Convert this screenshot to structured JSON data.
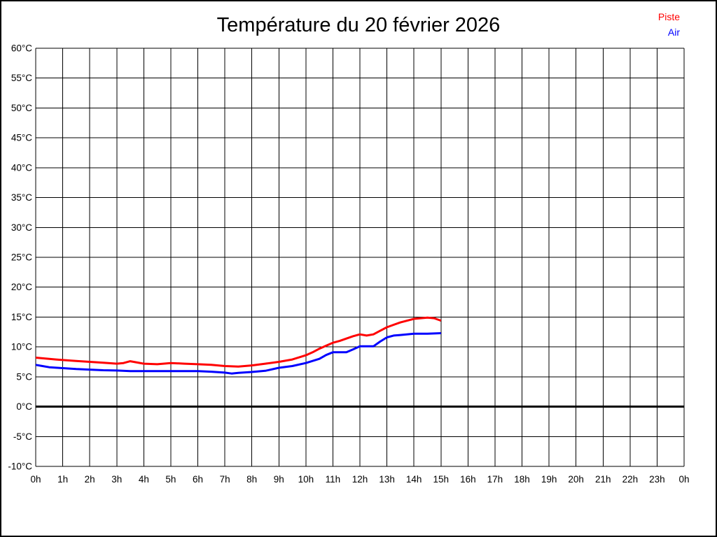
{
  "chart_data": {
    "type": "line",
    "title": "Température du 20 février 2026",
    "xlabel": "",
    "ylabel": "",
    "x_range": [
      0,
      24
    ],
    "y_range": [
      -10,
      60
    ],
    "grid": true,
    "zero_line_value": 0,
    "x_ticks": [
      {
        "v": 0,
        "label": "0h"
      },
      {
        "v": 1,
        "label": "1h"
      },
      {
        "v": 2,
        "label": "2h"
      },
      {
        "v": 3,
        "label": "3h"
      },
      {
        "v": 4,
        "label": "4h"
      },
      {
        "v": 5,
        "label": "5h"
      },
      {
        "v": 6,
        "label": "6h"
      },
      {
        "v": 7,
        "label": "7h"
      },
      {
        "v": 8,
        "label": "8h"
      },
      {
        "v": 9,
        "label": "9h"
      },
      {
        "v": 10,
        "label": "10h"
      },
      {
        "v": 11,
        "label": "11h"
      },
      {
        "v": 12,
        "label": "12h"
      },
      {
        "v": 13,
        "label": "13h"
      },
      {
        "v": 14,
        "label": "14h"
      },
      {
        "v": 15,
        "label": "15h"
      },
      {
        "v": 16,
        "label": "16h"
      },
      {
        "v": 17,
        "label": "17h"
      },
      {
        "v": 18,
        "label": "18h"
      },
      {
        "v": 19,
        "label": "19h"
      },
      {
        "v": 20,
        "label": "20h"
      },
      {
        "v": 21,
        "label": "21h"
      },
      {
        "v": 22,
        "label": "22h"
      },
      {
        "v": 23,
        "label": "23h"
      },
      {
        "v": 24,
        "label": "0h"
      }
    ],
    "y_ticks": [
      {
        "v": -10,
        "label": "-10°C"
      },
      {
        "v": -5,
        "label": "-5°C"
      },
      {
        "v": 0,
        "label": "0°C"
      },
      {
        "v": 5,
        "label": "5°C"
      },
      {
        "v": 10,
        "label": "10°C"
      },
      {
        "v": 15,
        "label": "15°C"
      },
      {
        "v": 20,
        "label": "20°C"
      },
      {
        "v": 25,
        "label": "25°C"
      },
      {
        "v": 30,
        "label": "30°C"
      },
      {
        "v": 35,
        "label": "35°C"
      },
      {
        "v": 40,
        "label": "40°C"
      },
      {
        "v": 45,
        "label": "45°C"
      },
      {
        "v": 50,
        "label": "50°C"
      },
      {
        "v": 55,
        "label": "55°C"
      },
      {
        "v": 60,
        "label": "60°C"
      }
    ],
    "legend": {
      "position": "top-right",
      "entries": [
        {
          "label": "Piste",
          "color": "#ff0000"
        },
        {
          "label": "Air",
          "color": "#0000ff"
        }
      ]
    },
    "series": [
      {
        "name": "Piste",
        "color": "#ff0000",
        "points": [
          [
            0,
            8.2
          ],
          [
            0.25,
            8.1
          ],
          [
            0.5,
            8.0
          ],
          [
            0.75,
            7.9
          ],
          [
            1,
            7.8
          ],
          [
            1.5,
            7.65
          ],
          [
            2,
            7.5
          ],
          [
            2.5,
            7.35
          ],
          [
            3,
            7.2
          ],
          [
            3.25,
            7.3
          ],
          [
            3.5,
            7.6
          ],
          [
            3.75,
            7.4
          ],
          [
            4,
            7.2
          ],
          [
            4.5,
            7.1
          ],
          [
            5,
            7.3
          ],
          [
            5.5,
            7.2
          ],
          [
            6,
            7.1
          ],
          [
            6.5,
            7.0
          ],
          [
            7,
            6.8
          ],
          [
            7.5,
            6.7
          ],
          [
            8,
            6.9
          ],
          [
            8.5,
            7.2
          ],
          [
            9,
            7.5
          ],
          [
            9.5,
            7.9
          ],
          [
            10,
            8.6
          ],
          [
            10.25,
            9.1
          ],
          [
            10.5,
            9.7
          ],
          [
            10.75,
            10.2
          ],
          [
            11,
            10.7
          ],
          [
            11.25,
            11.0
          ],
          [
            11.5,
            11.4
          ],
          [
            11.75,
            11.8
          ],
          [
            12,
            12.1
          ],
          [
            12.25,
            11.9
          ],
          [
            12.5,
            12.1
          ],
          [
            12.75,
            12.7
          ],
          [
            13,
            13.3
          ],
          [
            13.25,
            13.7
          ],
          [
            13.5,
            14.1
          ],
          [
            13.75,
            14.4
          ],
          [
            14,
            14.7
          ],
          [
            14.25,
            14.8
          ],
          [
            14.5,
            14.9
          ],
          [
            14.75,
            14.8
          ],
          [
            15,
            14.4
          ]
        ]
      },
      {
        "name": "Air",
        "color": "#0000ff",
        "points": [
          [
            0,
            7.0
          ],
          [
            0.25,
            6.8
          ],
          [
            0.5,
            6.6
          ],
          [
            1,
            6.45
          ],
          [
            1.5,
            6.3
          ],
          [
            2,
            6.2
          ],
          [
            2.5,
            6.1
          ],
          [
            3,
            6.05
          ],
          [
            3.5,
            5.95
          ],
          [
            4,
            5.95
          ],
          [
            4.5,
            5.95
          ],
          [
            5,
            5.95
          ],
          [
            5.5,
            5.95
          ],
          [
            6,
            5.95
          ],
          [
            6.5,
            5.85
          ],
          [
            7,
            5.7
          ],
          [
            7.25,
            5.55
          ],
          [
            7.5,
            5.65
          ],
          [
            8,
            5.8
          ],
          [
            8.5,
            6.0
          ],
          [
            9,
            6.5
          ],
          [
            9.5,
            6.8
          ],
          [
            10,
            7.3
          ],
          [
            10.5,
            8.0
          ],
          [
            10.75,
            8.65
          ],
          [
            11,
            9.1
          ],
          [
            11.5,
            9.1
          ],
          [
            11.75,
            9.6
          ],
          [
            12,
            10.1
          ],
          [
            12.5,
            10.1
          ],
          [
            12.75,
            10.9
          ],
          [
            13,
            11.6
          ],
          [
            13.25,
            11.9
          ],
          [
            13.5,
            12.0
          ],
          [
            14,
            12.2
          ],
          [
            14.5,
            12.2
          ],
          [
            15,
            12.3
          ]
        ]
      }
    ]
  }
}
